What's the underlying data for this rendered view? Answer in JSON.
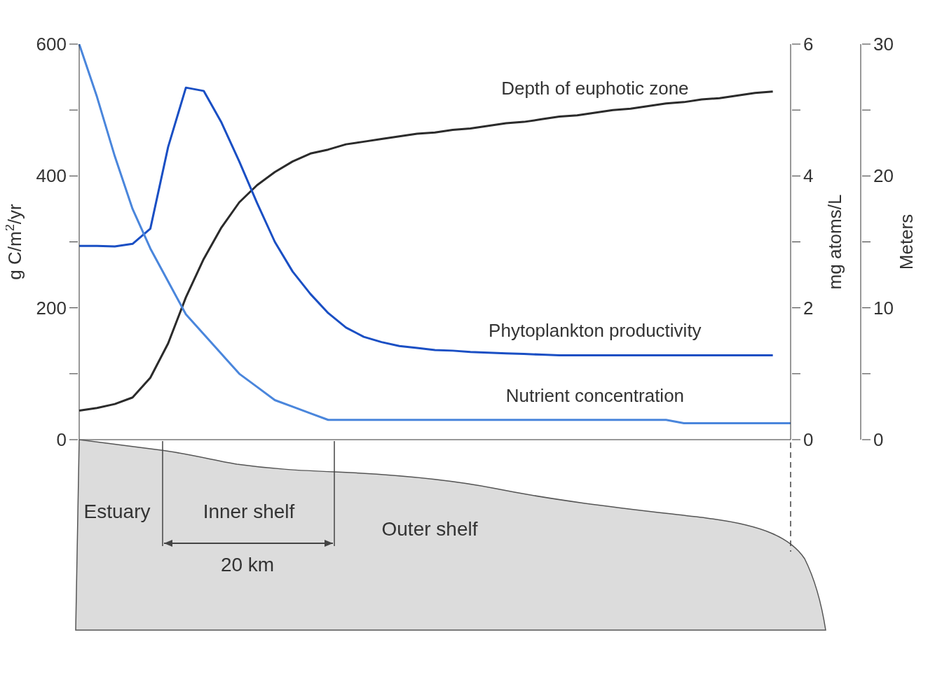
{
  "chart_data": {
    "type": "line",
    "ylabel": "g C/m$^{2}$/yr",
    "y2label": "mg atoms/L",
    "y3label": "Meters",
    "categories": [
      null,
      null,
      null,
      null,
      null,
      null,
      null,
      null,
      null,
      null,
      null,
      null,
      null,
      null,
      null,
      null,
      null,
      null,
      null,
      null,
      null,
      null,
      null,
      null,
      null,
      null,
      null,
      null,
      null,
      null,
      null,
      null,
      null,
      null,
      null,
      null,
      null,
      null,
      null,
      null,
      null
    ],
    "series": [
      {
        "name": "Depth of euphotic zone",
        "color": "#2b2b2b",
        "axis": "y3",
        "values": [
          2.2,
          2.4,
          2.7,
          3.2,
          4.7,
          7.3,
          10.8,
          13.7,
          16.1,
          18.0,
          19.3,
          20.3,
          21.1,
          21.7,
          22.0,
          22.4,
          22.6,
          22.8,
          23.0,
          23.2,
          23.3,
          23.5,
          23.6,
          23.8,
          24.0,
          24.1,
          24.3,
          24.5,
          24.6,
          24.8,
          25.0,
          25.1,
          25.3,
          25.5,
          25.6,
          25.8,
          25.9,
          26.1,
          26.3,
          26.4,
          null
        ]
      },
      {
        "name": "Phytoplankton productivity",
        "color": "#1a4fc4",
        "axis": "y",
        "values": [
          294,
          294,
          293,
          297,
          320,
          444,
          534,
          529,
          481,
          422,
          359,
          300,
          255,
          221,
          192,
          170,
          156,
          148,
          142,
          139,
          136,
          135,
          133,
          132,
          131,
          130,
          129,
          128,
          128,
          128,
          128,
          128,
          128,
          128,
          128,
          128,
          128,
          128,
          128,
          128,
          null
        ]
      },
      {
        "name": "Nutrient concentration",
        "color": "#4a86dc",
        "axis": "y2",
        "values": [
          6.0,
          5.2,
          4.3,
          3.5,
          2.9,
          2.4,
          1.9,
          1.6,
          1.3,
          1.0,
          0.8,
          0.6,
          0.5,
          0.4,
          0.3,
          0.3,
          0.3,
          0.3,
          0.3,
          0.3,
          0.3,
          0.3,
          0.3,
          0.3,
          0.3,
          0.3,
          0.3,
          0.3,
          0.3,
          0.3,
          0.3,
          0.3,
          0.3,
          0.3,
          0.25,
          0.25,
          0.25,
          0.25,
          0.25,
          0.25,
          0.25
        ]
      }
    ],
    "ylim": [
      0,
      600
    ],
    "yticks": [
      0,
      {
        "value": 100,
        "label": null
      },
      200,
      {
        "value": 300,
        "label": null
      },
      400,
      {
        "value": 500,
        "label": null
      },
      600
    ],
    "y2lim": [
      0,
      6
    ],
    "y2ticks": [
      0,
      {
        "value": 1,
        "label": null
      },
      2,
      {
        "value": 3,
        "label": null
      },
      4,
      {
        "value": 5,
        "label": null
      },
      6
    ],
    "y3lim": [
      0,
      30
    ],
    "y3ticks": [
      0,
      {
        "value": 5,
        "label": null
      },
      10,
      {
        "value": 15,
        "label": null
      },
      20,
      {
        "value": 25,
        "label": null
      },
      30
    ],
    "grid": false,
    "annotations": [
      "Estuary",
      "Inner shelf",
      "Outer shelf",
      "20 km"
    ]
  }
}
